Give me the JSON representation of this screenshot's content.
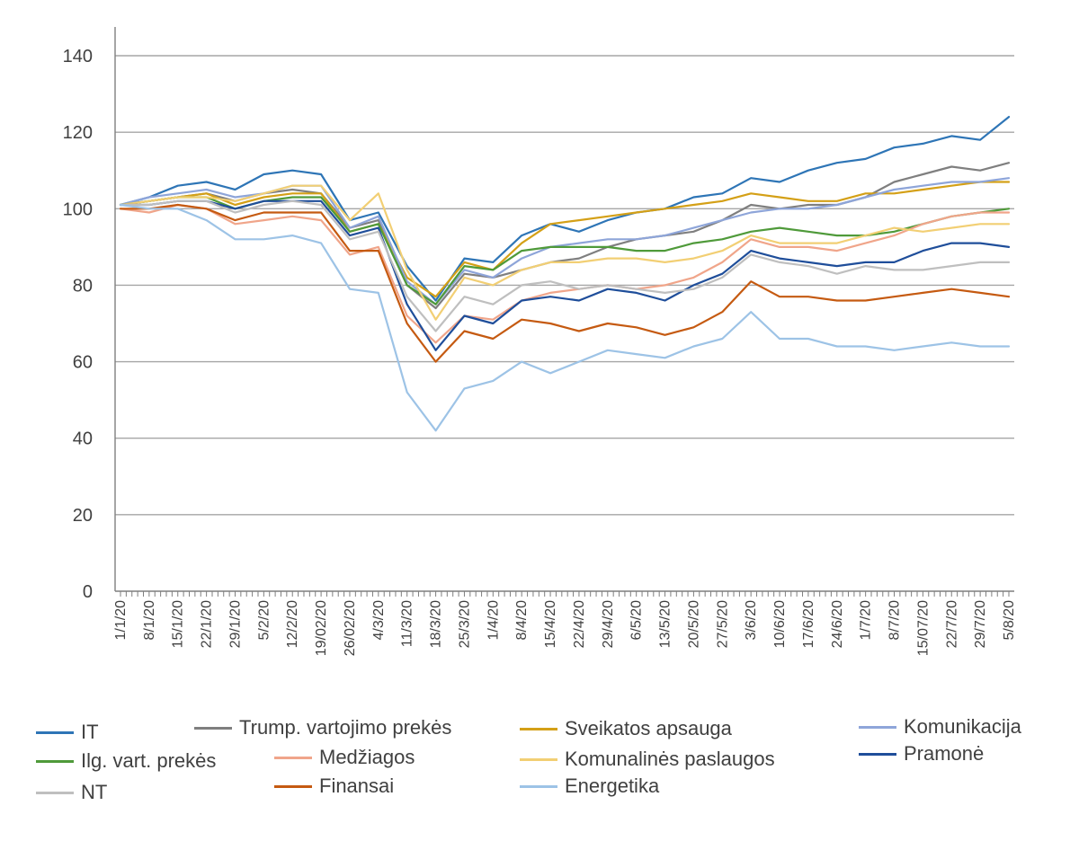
{
  "chart_data": {
    "type": "line",
    "title": "",
    "xlabel": "",
    "ylabel": "",
    "ylim": [
      0,
      140
    ],
    "yticks": [
      0,
      20,
      40,
      60,
      80,
      100,
      120,
      140
    ],
    "grid": "horizontal",
    "legend_position": "bottom",
    "x": [
      "1/1/20",
      "8/1/20",
      "15/1/20",
      "22/1/20",
      "29/1/20",
      "5/2/20",
      "12/2/20",
      "19/02/20",
      "26/02/20",
      "4/3/20",
      "11/3/20",
      "18/3/20",
      "25/3/20",
      "1/4/20",
      "8/4/20",
      "15/4/20",
      "22/4/20",
      "29/4/20",
      "6/5/20",
      "13/5/20",
      "20/5/20",
      "27/5/20",
      "3/6/20",
      "10/6/20",
      "17/6/20",
      "24/6/20",
      "1/7/20",
      "8/7/20",
      "15/07/20",
      "22/7/20",
      "29/7/20",
      "5/8/20"
    ],
    "series": [
      {
        "name": "IT",
        "color": "#2e75b6",
        "values": [
          101,
          103,
          106,
          107,
          105,
          109,
          110,
          109,
          97,
          99,
          85,
          76,
          87,
          86,
          93,
          96,
          94,
          97,
          99,
          100,
          103,
          104,
          108,
          107,
          110,
          112,
          113,
          116,
          117,
          119,
          118,
          124
        ]
      },
      {
        "name": "Trump. vartojimo prekės",
        "color": "#7f7f7f",
        "values": [
          101,
          102,
          103,
          104,
          102,
          104,
          105,
          104,
          95,
          97,
          80,
          74,
          83,
          82,
          84,
          86,
          87,
          90,
          92,
          93,
          94,
          97,
          101,
          100,
          101,
          101,
          103,
          107,
          109,
          111,
          110,
          112
        ]
      },
      {
        "name": "Sveikatos apsauga",
        "color": "#d4a017",
        "values": [
          101,
          102,
          103,
          104,
          101,
          103,
          104,
          104,
          94,
          96,
          82,
          77,
          86,
          84,
          91,
          96,
          97,
          98,
          99,
          100,
          101,
          102,
          104,
          103,
          102,
          102,
          104,
          104,
          105,
          106,
          107,
          107
        ]
      },
      {
        "name": "Komunikacija",
        "color": "#8ea5d9",
        "values": [
          101,
          103,
          104,
          105,
          103,
          104,
          106,
          106,
          95,
          98,
          81,
          75,
          84,
          82,
          87,
          90,
          91,
          92,
          92,
          93,
          95,
          97,
          99,
          100,
          100,
          101,
          103,
          105,
          106,
          107,
          107,
          108
        ]
      },
      {
        "name": "Ilg. vart. prekės",
        "color": "#4f9a3a",
        "values": [
          101,
          102,
          103,
          103,
          100,
          102,
          103,
          103,
          94,
          96,
          80,
          75,
          85,
          84,
          89,
          90,
          90,
          90,
          89,
          89,
          91,
          92,
          94,
          95,
          94,
          93,
          93,
          94,
          96,
          98,
          99,
          100
        ]
      },
      {
        "name": "Medžiagos",
        "color": "#f0a58a",
        "values": [
          100,
          99,
          101,
          100,
          96,
          97,
          98,
          97,
          88,
          90,
          72,
          65,
          72,
          71,
          76,
          78,
          79,
          80,
          79,
          80,
          82,
          86,
          92,
          90,
          90,
          89,
          91,
          93,
          96,
          98,
          99,
          99
        ]
      },
      {
        "name": "Komunalinės paslaugos",
        "color": "#f2cf74",
        "values": [
          101,
          102,
          103,
          103,
          102,
          104,
          106,
          106,
          97,
          104,
          84,
          71,
          82,
          80,
          84,
          86,
          86,
          87,
          87,
          86,
          87,
          89,
          93,
          91,
          91,
          91,
          93,
          95,
          94,
          95,
          96,
          96
        ]
      },
      {
        "name": "Pramonė",
        "color": "#1f4e9a",
        "values": [
          101,
          101,
          102,
          102,
          100,
          102,
          102,
          102,
          93,
          95,
          75,
          63,
          72,
          70,
          76,
          77,
          76,
          79,
          78,
          76,
          80,
          83,
          89,
          87,
          86,
          85,
          86,
          86,
          89,
          91,
          91,
          90
        ]
      },
      {
        "name": "NT",
        "color": "#bfbfbf",
        "values": [
          101,
          101,
          102,
          102,
          99,
          101,
          102,
          101,
          92,
          94,
          77,
          68,
          77,
          75,
          80,
          81,
          79,
          80,
          79,
          78,
          79,
          82,
          88,
          86,
          85,
          83,
          85,
          84,
          84,
          85,
          86,
          86
        ]
      },
      {
        "name": "Finansai",
        "color": "#c55a11",
        "values": [
          100,
          100,
          101,
          100,
          97,
          99,
          99,
          99,
          89,
          89,
          70,
          60,
          68,
          66,
          71,
          70,
          68,
          70,
          69,
          67,
          69,
          73,
          81,
          77,
          77,
          76,
          76,
          77,
          78,
          79,
          78,
          77
        ]
      },
      {
        "name": "Energetika",
        "color": "#9dc3e6",
        "values": [
          101,
          100,
          100,
          97,
          92,
          92,
          93,
          91,
          79,
          78,
          52,
          42,
          53,
          55,
          60,
          57,
          60,
          63,
          62,
          61,
          64,
          66,
          73,
          66,
          66,
          64,
          64,
          63,
          64,
          65,
          64,
          64
        ]
      }
    ]
  },
  "legend": {
    "items": [
      {
        "label": "IT",
        "color": "#2e75b6"
      },
      {
        "label": "Ilg. vart. prekės",
        "color": "#4f9a3a"
      },
      {
        "label": "NT",
        "color": "#bfbfbf"
      },
      {
        "label": "Trump. vartojimo prekės",
        "color": "#7f7f7f"
      },
      {
        "label": "Medžiagos",
        "color": "#f0a58a"
      },
      {
        "label": "Finansai",
        "color": "#c55a11"
      },
      {
        "label": "Sveikatos apsauga",
        "color": "#d4a017"
      },
      {
        "label": "Komunalinės paslaugos",
        "color": "#f2cf74"
      },
      {
        "label": "Energetika",
        "color": "#9dc3e6"
      },
      {
        "label": "Komunikacija",
        "color": "#8ea5d9"
      },
      {
        "label": "Pramonė",
        "color": "#1f4e9a"
      }
    ]
  }
}
